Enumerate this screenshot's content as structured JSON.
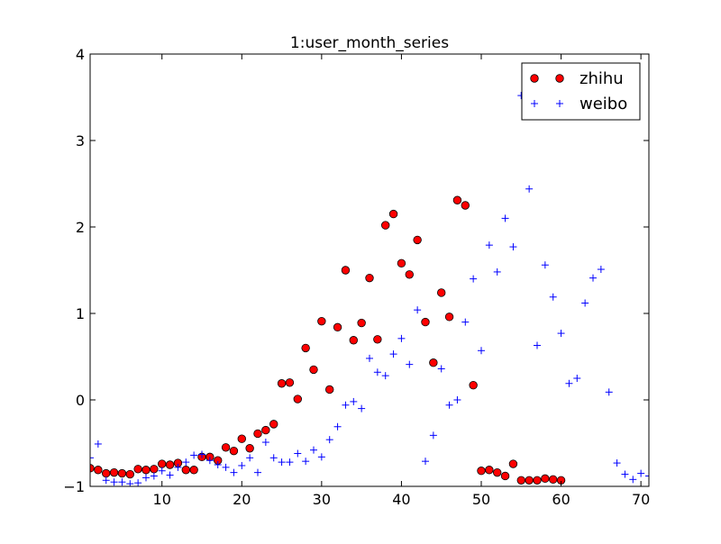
{
  "chart_data": {
    "type": "scatter",
    "title": "1:user_month_series",
    "xlabel": "",
    "ylabel": "",
    "xlim": [
      1,
      71
    ],
    "ylim": [
      -1,
      4
    ],
    "xticks": [
      10,
      20,
      30,
      40,
      50,
      60,
      70
    ],
    "yticks": [
      -1,
      0,
      1,
      2,
      3,
      4
    ],
    "xtick_labels": [
      "10",
      "20",
      "30",
      "40",
      "50",
      "60",
      "70"
    ],
    "ytick_labels": [
      "−1",
      "0",
      "1",
      "2",
      "3",
      "4"
    ],
    "grid": false,
    "legend_position": "top-right",
    "series": [
      {
        "name": "zhihu",
        "marker": "circle",
        "color": "#ff0000",
        "edge_color": "#000000",
        "points": [
          [
            1,
            -0.79
          ],
          [
            2,
            -0.81
          ],
          [
            3,
            -0.85
          ],
          [
            4,
            -0.84
          ],
          [
            5,
            -0.85
          ],
          [
            6,
            -0.86
          ],
          [
            7,
            -0.8
          ],
          [
            8,
            -0.81
          ],
          [
            9,
            -0.8
          ],
          [
            10,
            -0.74
          ],
          [
            11,
            -0.75
          ],
          [
            12,
            -0.73
          ],
          [
            13,
            -0.81
          ],
          [
            14,
            -0.81
          ],
          [
            15,
            -0.66
          ],
          [
            16,
            -0.66
          ],
          [
            17,
            -0.7
          ],
          [
            18,
            -0.55
          ],
          [
            19,
            -0.59
          ],
          [
            20,
            -0.45
          ],
          [
            21,
            -0.56
          ],
          [
            22,
            -0.39
          ],
          [
            23,
            -0.35
          ],
          [
            24,
            -0.28
          ],
          [
            25,
            0.19
          ],
          [
            26,
            0.2
          ],
          [
            27,
            0.01
          ],
          [
            28,
            0.6
          ],
          [
            29,
            0.35
          ],
          [
            30,
            0.91
          ],
          [
            31,
            0.12
          ],
          [
            32,
            0.84
          ],
          [
            33,
            1.5
          ],
          [
            34,
            0.69
          ],
          [
            35,
            0.89
          ],
          [
            36,
            1.41
          ],
          [
            37,
            0.7
          ],
          [
            38,
            2.02
          ],
          [
            39,
            2.15
          ],
          [
            40,
            1.58
          ],
          [
            41,
            1.45
          ],
          [
            42,
            1.85
          ],
          [
            43,
            0.9
          ],
          [
            44,
            0.43
          ],
          [
            45,
            1.24
          ],
          [
            46,
            0.96
          ],
          [
            47,
            2.31
          ],
          [
            48,
            2.25
          ],
          [
            49,
            0.17
          ],
          [
            50,
            -0.82
          ],
          [
            51,
            -0.81
          ],
          [
            52,
            -0.84
          ],
          [
            53,
            -0.88
          ],
          [
            54,
            -0.74
          ],
          [
            55,
            -0.93
          ],
          [
            56,
            -0.93
          ],
          [
            57,
            -0.93
          ],
          [
            58,
            -0.91
          ],
          [
            59,
            -0.92
          ],
          [
            60,
            -0.93
          ]
        ]
      },
      {
        "name": "weibo",
        "marker": "plus",
        "color": "#0000ff",
        "points": [
          [
            1,
            -0.67
          ],
          [
            2,
            -0.51
          ],
          [
            3,
            -0.93
          ],
          [
            4,
            -0.95
          ],
          [
            5,
            -0.95
          ],
          [
            6,
            -0.97
          ],
          [
            7,
            -0.96
          ],
          [
            8,
            -0.9
          ],
          [
            9,
            -0.88
          ],
          [
            10,
            -0.82
          ],
          [
            11,
            -0.87
          ],
          [
            12,
            -0.78
          ],
          [
            13,
            -0.72
          ],
          [
            14,
            -0.64
          ],
          [
            15,
            -0.63
          ],
          [
            16,
            -0.7
          ],
          [
            17,
            -0.75
          ],
          [
            18,
            -0.78
          ],
          [
            19,
            -0.84
          ],
          [
            20,
            -0.76
          ],
          [
            21,
            -0.67
          ],
          [
            22,
            -0.84
          ],
          [
            23,
            -0.49
          ],
          [
            24,
            -0.67
          ],
          [
            25,
            -0.72
          ],
          [
            26,
            -0.72
          ],
          [
            27,
            -0.62
          ],
          [
            28,
            -0.71
          ],
          [
            29,
            -0.58
          ],
          [
            30,
            -0.66
          ],
          [
            31,
            -0.46
          ],
          [
            32,
            -0.31
          ],
          [
            33,
            -0.06
          ],
          [
            34,
            -0.02
          ],
          [
            35,
            -0.1
          ],
          [
            36,
            0.48
          ],
          [
            37,
            0.32
          ],
          [
            38,
            0.28
          ],
          [
            39,
            0.53
          ],
          [
            40,
            0.71
          ],
          [
            41,
            0.41
          ],
          [
            42,
            1.04
          ],
          [
            43,
            -0.71
          ],
          [
            44,
            -0.41
          ],
          [
            45,
            0.36
          ],
          [
            46,
            -0.06
          ],
          [
            47,
            0.0
          ],
          [
            48,
            0.9
          ],
          [
            49,
            1.4
          ],
          [
            50,
            0.57
          ],
          [
            51,
            1.79
          ],
          [
            52,
            1.48
          ],
          [
            53,
            2.1
          ],
          [
            54,
            1.77
          ],
          [
            55,
            3.52
          ],
          [
            56,
            2.44
          ],
          [
            57,
            0.63
          ],
          [
            58,
            1.56
          ],
          [
            59,
            1.19
          ],
          [
            60,
            0.77
          ],
          [
            61,
            0.19
          ],
          [
            62,
            0.25
          ],
          [
            63,
            1.12
          ],
          [
            64,
            1.41
          ],
          [
            65,
            1.51
          ],
          [
            66,
            0.09
          ],
          [
            67,
            -0.73
          ],
          [
            68,
            -0.86
          ],
          [
            69,
            -0.92
          ],
          [
            70,
            -0.85
          ],
          [
            71,
            -0.88
          ]
        ]
      }
    ]
  }
}
